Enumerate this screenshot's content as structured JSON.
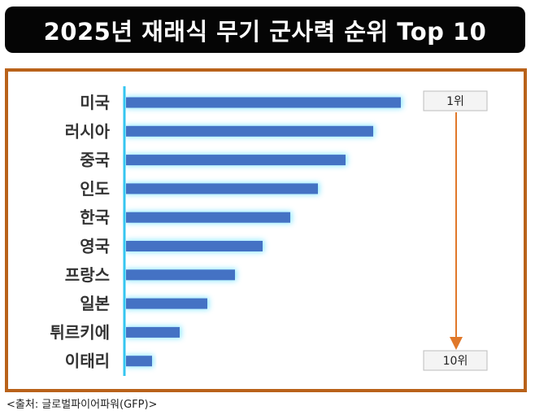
{
  "title": "2025년 재래식 무기 군사력 순위 Top 10",
  "source": "<출처: 글로벌파이어파워(GFP)>",
  "colors": {
    "bar": "#4472c4",
    "glow": "#7fe6ff",
    "arrow": "#e0782a",
    "frame": "#b9621a",
    "axis": "#35c6f0"
  },
  "chart_data": {
    "type": "bar",
    "orientation": "horizontal",
    "title": "2025년 재래식 무기 군사력 순위 Top 10",
    "categories": [
      "미국",
      "러시아",
      "중국",
      "인도",
      "한국",
      "영국",
      "프랑스",
      "일본",
      "튀르키에",
      "이태리"
    ],
    "values": [
      1,
      2,
      3,
      4,
      5,
      6,
      7,
      8,
      9,
      10
    ],
    "value_meaning": "rank",
    "rank_labels": {
      "top": "1위",
      "bottom": "10위"
    },
    "xlabel": "",
    "ylabel": "",
    "grid": false,
    "legend": "none"
  }
}
